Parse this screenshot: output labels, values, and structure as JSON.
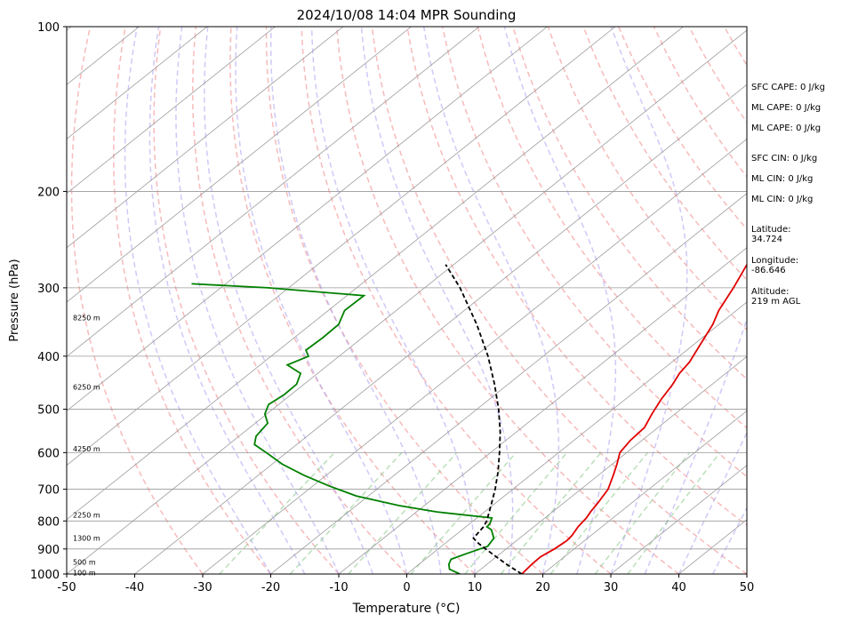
{
  "chart_data": {
    "type": "line",
    "title": "2024/10/08 14:04 MPR Sounding",
    "xlabel": "Temperature (°C)",
    "ylabel": "Pressure (hPa)",
    "xlim": [
      -50,
      50
    ],
    "ylim": [
      1000,
      100
    ],
    "yscale": "log",
    "skew": true,
    "x_ticks": [
      -50,
      -40,
      -30,
      -20,
      -10,
      0,
      10,
      20,
      30,
      40,
      50
    ],
    "y_ticks": [
      1000,
      900,
      800,
      700,
      600,
      500,
      400,
      300,
      200,
      100
    ],
    "grid": "horizontal isobars and skewed isotherms",
    "background_lines": [
      "dry adiabats (red dashed)",
      "moist adiabats (blue dashed)",
      "mixing ratio lines (green dashed)"
    ],
    "series": [
      {
        "role": "temperature",
        "color": "#e00000",
        "points": [
          [
            1000,
            16.9
          ],
          [
            960,
            16.6
          ],
          [
            930,
            16.5
          ],
          [
            900,
            17.1
          ],
          [
            870,
            17.4
          ],
          [
            850,
            17.2
          ],
          [
            820,
            16.5
          ],
          [
            790,
            16.1
          ],
          [
            770,
            15.6
          ],
          [
            740,
            15.0
          ],
          [
            700,
            14.0
          ],
          [
            660,
            12.2
          ],
          [
            630,
            10.7
          ],
          [
            600,
            9.0
          ],
          [
            570,
            8.3
          ],
          [
            540,
            8.0
          ],
          [
            510,
            6.6
          ],
          [
            480,
            5.3
          ],
          [
            450,
            4.2
          ],
          [
            430,
            3.2
          ],
          [
            410,
            2.6
          ],
          [
            380,
            0.9
          ],
          [
            350,
            -0.9
          ],
          [
            330,
            -2.6
          ],
          [
            300,
            -4.6
          ],
          [
            285,
            -5.8
          ],
          [
            272,
            -6.9
          ]
        ]
      },
      {
        "role": "dewpoint",
        "color": "#008000",
        "points": [
          [
            1000,
            7.8
          ],
          [
            980,
            5.4
          ],
          [
            960,
            4.4
          ],
          [
            940,
            3.8
          ],
          [
            920,
            4.9
          ],
          [
            890,
            6.8
          ],
          [
            860,
            6.2
          ],
          [
            830,
            4.3
          ],
          [
            820,
            3.1
          ],
          [
            810,
            3.0
          ],
          [
            790,
            2.2
          ],
          [
            770,
            -7.0
          ],
          [
            750,
            -13.7
          ],
          [
            720,
            -21.8
          ],
          [
            690,
            -27.7
          ],
          [
            660,
            -33.3
          ],
          [
            630,
            -38.5
          ],
          [
            600,
            -43.0
          ],
          [
            580,
            -46.2
          ],
          [
            560,
            -47.5
          ],
          [
            530,
            -48.2
          ],
          [
            510,
            -50.3
          ],
          [
            490,
            -51.5
          ],
          [
            470,
            -51.0
          ],
          [
            450,
            -51.1
          ],
          [
            430,
            -52.5
          ],
          [
            415,
            -56.0
          ],
          [
            400,
            -54.5
          ],
          [
            390,
            -56.0
          ],
          [
            370,
            -55.8
          ],
          [
            350,
            -55.9
          ],
          [
            330,
            -57.6
          ],
          [
            310,
            -57.5
          ],
          [
            300,
            -73.0
          ],
          [
            295,
            -85.0
          ]
        ]
      },
      {
        "role": "parcel path",
        "color": "#000000",
        "dashed": true,
        "points": [
          [
            1000,
            16.9
          ],
          [
            960,
            12.9
          ],
          [
            920,
            9.0
          ],
          [
            900,
            7.0
          ],
          [
            880,
            5.0
          ],
          [
            860,
            3.2
          ],
          [
            820,
            2.6
          ],
          [
            800,
            2.0
          ],
          [
            750,
            -0.2
          ],
          [
            700,
            -2.6
          ],
          [
            650,
            -5.4
          ],
          [
            600,
            -8.7
          ],
          [
            550,
            -12.4
          ],
          [
            500,
            -16.8
          ],
          [
            450,
            -22.0
          ],
          [
            400,
            -28.1
          ],
          [
            350,
            -35.6
          ],
          [
            300,
            -44.8
          ],
          [
            272,
            -51.2
          ]
        ]
      }
    ],
    "height_labels": [
      "100 m",
      "500 m",
      "1300 m",
      "2250 m",
      "4250 m",
      "6250 m",
      "8250 m"
    ],
    "height_label_pressures": [
      995,
      950,
      860,
      780,
      590,
      455,
      340
    ]
  },
  "indices": {
    "lines": [
      "SFC CAPE: 0 J/kg",
      "ML CAPE: 0 J/kg",
      "ML CAPE: 0 J/kg",
      "SFC CIN: 0 J/kg",
      "ML CIN: 0 J/kg",
      "ML CIN: 0 J/kg"
    ]
  },
  "location": {
    "latitude_label": "Latitude:",
    "latitude": "34.724",
    "longitude_label": "Longitude:",
    "longitude": "-86.646",
    "altitude_label": "Altitude:",
    "altitude": "219 m AGL"
  }
}
